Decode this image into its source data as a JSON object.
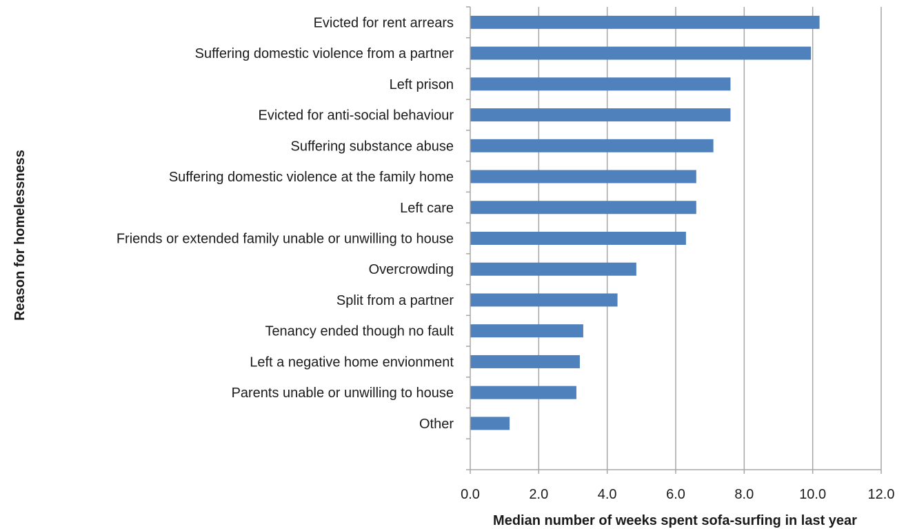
{
  "chart_data": {
    "type": "bar",
    "orientation": "horizontal",
    "categories": [
      "Evicted for rent arrears",
      "Suffering domestic violence from a partner",
      "Left prison",
      "Evicted for anti-social behaviour",
      "Suffering substance abuse",
      "Suffering domestic violence at the family home",
      "Left care",
      "Friends or extended family unable or unwilling to house",
      "Overcrowding",
      "Split from a partner",
      "Tenancy ended though no fault",
      "Left a negative home envionment",
      "Parents unable or unwilling to house",
      "Other"
    ],
    "values": [
      10.2,
      9.95,
      7.6,
      7.6,
      7.1,
      6.6,
      6.6,
      6.3,
      4.85,
      4.3,
      3.3,
      3.2,
      3.1,
      1.15
    ],
    "title": "",
    "xlabel": "Median number of weeks spent sofa-surfing in last year",
    "ylabel": "Reason for homelessness",
    "xlim": [
      0,
      12
    ],
    "x_ticks": [
      "0.0",
      "2.0",
      "4.0",
      "6.0",
      "8.0",
      "10.0",
      "12.0"
    ],
    "grid": "vertical",
    "legend": "none",
    "bar_color": "#4f81bd",
    "grid_color": "#a6a6a6"
  }
}
